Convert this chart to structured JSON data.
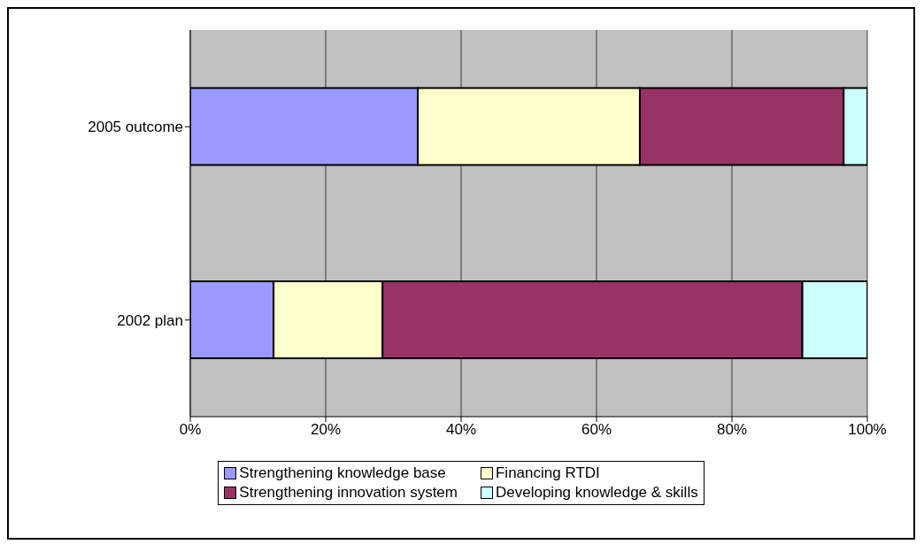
{
  "chart_data": {
    "type": "bar",
    "orientation": "horizontal",
    "stacked": true,
    "categories": [
      "2005 outcome",
      "2002 plan"
    ],
    "series": [
      {
        "name": "Strengthening knowledge base",
        "color": "#9999ff",
        "values": [
          33.6,
          12.3
        ]
      },
      {
        "name": "Financing RTDI",
        "color": "#ffffcc",
        "values": [
          32.8,
          16.1
        ]
      },
      {
        "name": "Strengthening innovation system",
        "color": "#993366",
        "values": [
          30.1,
          62.0
        ]
      },
      {
        "name": "Developing knowledge & skills",
        "color": "#ccffff",
        "values": [
          3.5,
          9.6
        ]
      }
    ],
    "xlim": [
      0,
      100
    ],
    "xticks": [
      {
        "value": 0,
        "label": "0%"
      },
      {
        "value": 20,
        "label": "20%"
      },
      {
        "value": 40,
        "label": "40%"
      },
      {
        "value": 60,
        "label": "60%"
      },
      {
        "value": 80,
        "label": "80%"
      },
      {
        "value": 100,
        "label": "100%"
      }
    ],
    "grid": "x",
    "legend": "bottom"
  }
}
